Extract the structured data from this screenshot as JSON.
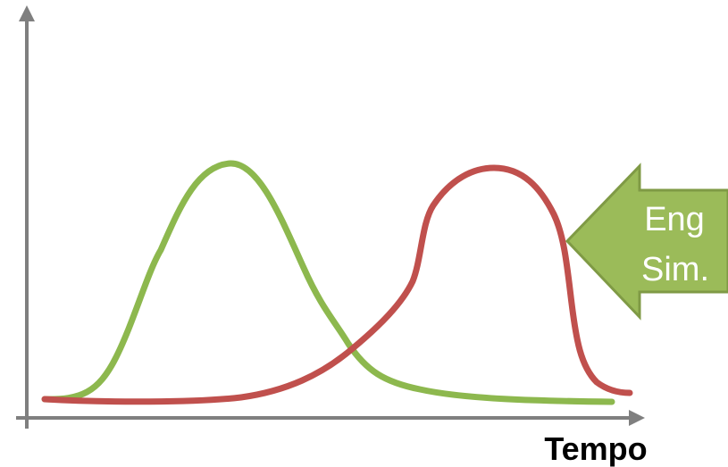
{
  "diagram": {
    "x_axis_label": "Tempo",
    "callout": {
      "line1": "Eng",
      "line2": "Sim."
    },
    "curves": [
      {
        "id": "green-curve",
        "color": "#8DB84E"
      },
      {
        "id": "red-curve",
        "color": "#C0504D"
      }
    ],
    "callout_color": "#9BBB59",
    "callout_border_color": "#7F9A45",
    "axis_color": "#7F7F7F"
  }
}
